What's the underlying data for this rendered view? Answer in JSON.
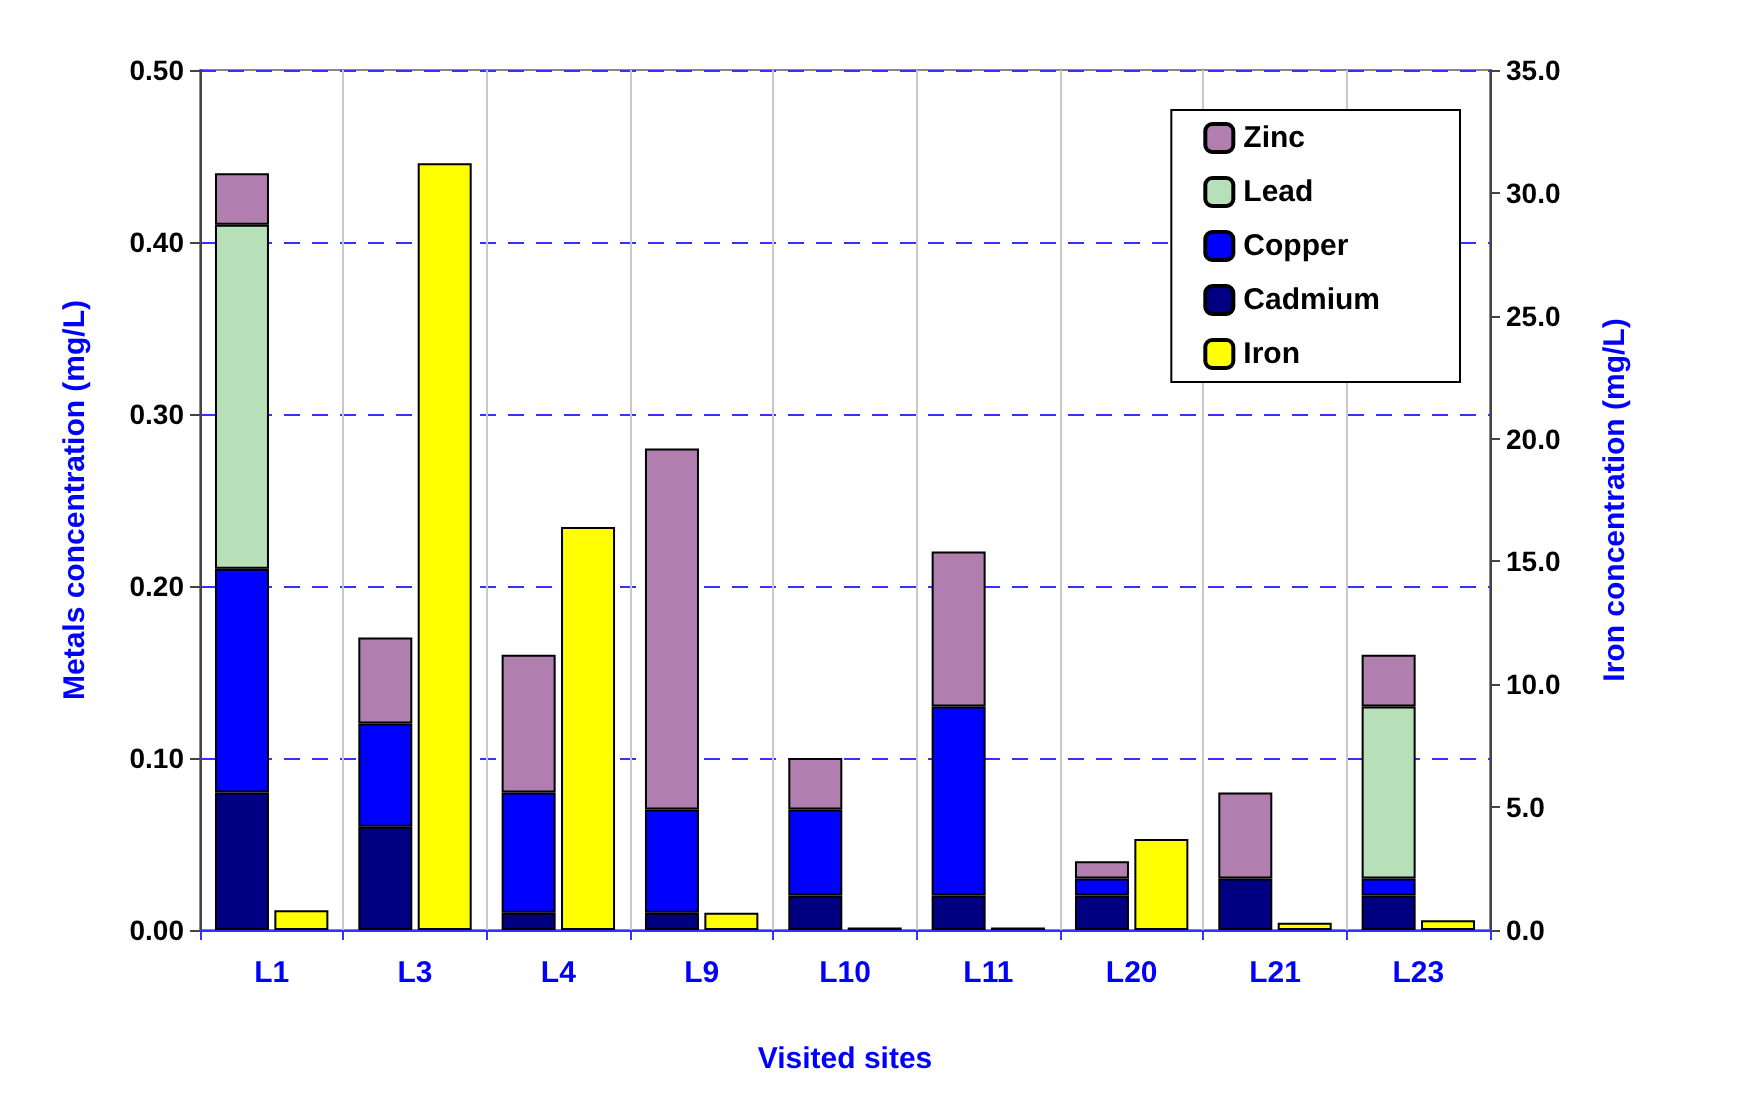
{
  "chart_data": {
    "type": "bar",
    "xlabel": "Visited sites",
    "ylabel": "Metals concentration (mg/L)",
    "y2label": "Iron concentration (mg/L)",
    "categories": [
      "L1",
      "L3",
      "L4",
      "L9",
      "L10",
      "L11",
      "L20",
      "L21",
      "L23"
    ],
    "stacked": true,
    "series": [
      {
        "name": "Cadmium",
        "color": "#000080",
        "values": [
          0.08,
          0.06,
          0.01,
          0.01,
          0.02,
          0.02,
          0.02,
          0.03,
          0.02
        ]
      },
      {
        "name": "Copper",
        "color": "#0000ff",
        "values": [
          0.13,
          0.06,
          0.07,
          0.06,
          0.05,
          0.11,
          0.01,
          0,
          0.01
        ]
      },
      {
        "name": "Lead",
        "color": "#b8e0b8",
        "values": [
          0.2,
          0,
          0,
          0,
          0,
          0,
          0,
          0,
          0.1
        ]
      },
      {
        "name": "Zinc",
        "color": "#b07fb0",
        "values": [
          0.03,
          0.05,
          0.08,
          0.21,
          0.03,
          0.09,
          0.01,
          0.05,
          0.03
        ]
      },
      {
        "name": "Iron",
        "color": "#ffff00",
        "axis": "y2",
        "values": [
          0.8,
          31.2,
          16.4,
          0.7,
          0.1,
          0.1,
          3.7,
          0.3,
          0.4
        ]
      }
    ],
    "ylim": [
      0,
      0.5
    ],
    "yticks": [
      {
        "value": 0,
        "label": "0.00"
      },
      {
        "value": 0.1,
        "label": "0.10"
      },
      {
        "value": 0.2,
        "label": "0.20"
      },
      {
        "value": 0.3,
        "label": "0.30"
      },
      {
        "value": 0.4,
        "label": "0.40"
      },
      {
        "value": 0.5,
        "label": "0.50"
      }
    ],
    "y2lim": [
      0,
      35
    ],
    "y2ticks": [
      {
        "value": 0,
        "label": "0.0"
      },
      {
        "value": 5,
        "label": "5.0"
      },
      {
        "value": 10,
        "label": "10.0"
      },
      {
        "value": 15,
        "label": "15.0"
      },
      {
        "value": 20,
        "label": "20.0"
      },
      {
        "value": 25,
        "label": "25.0"
      },
      {
        "value": 30,
        "label": "30.0"
      },
      {
        "value": 35,
        "label": "35.0"
      }
    ],
    "grid": true,
    "legend": "top right"
  }
}
